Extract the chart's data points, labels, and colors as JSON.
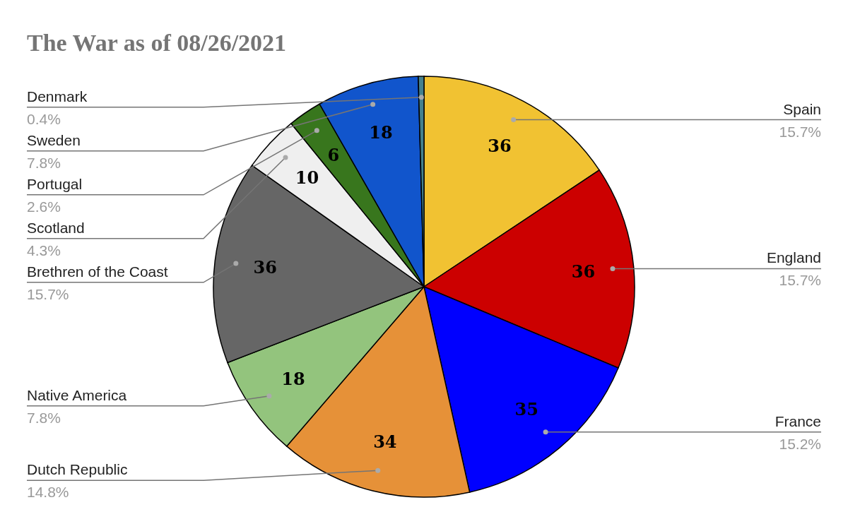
{
  "chart_data": {
    "type": "pie",
    "title": "The War as of 08/26/2021",
    "categories": [
      "Spain",
      "England",
      "France",
      "Dutch Republic",
      "Native America",
      "Brethren of the Coast",
      "Scotland",
      "Portugal",
      "Sweden",
      "Denmark"
    ],
    "values": [
      36,
      36,
      35,
      34,
      18,
      36,
      10,
      6,
      18,
      1
    ],
    "colors": [
      "#f1c232",
      "#cc0000",
      "#0000ff",
      "#e69138",
      "#93c47d",
      "#666666",
      "#efefef",
      "#38761d",
      "#1155cc",
      "#45818e"
    ],
    "value_labels": [
      "36",
      "36",
      "35",
      "34",
      "18",
      "36",
      "10",
      "6",
      "18",
      null
    ],
    "annotations": [
      "15.7%",
      "15.7%",
      "15.2%",
      "14.8%",
      "7.8%",
      "15.7%",
      "4.3%",
      "2.6%",
      "7.8%",
      "0.4%"
    ]
  }
}
